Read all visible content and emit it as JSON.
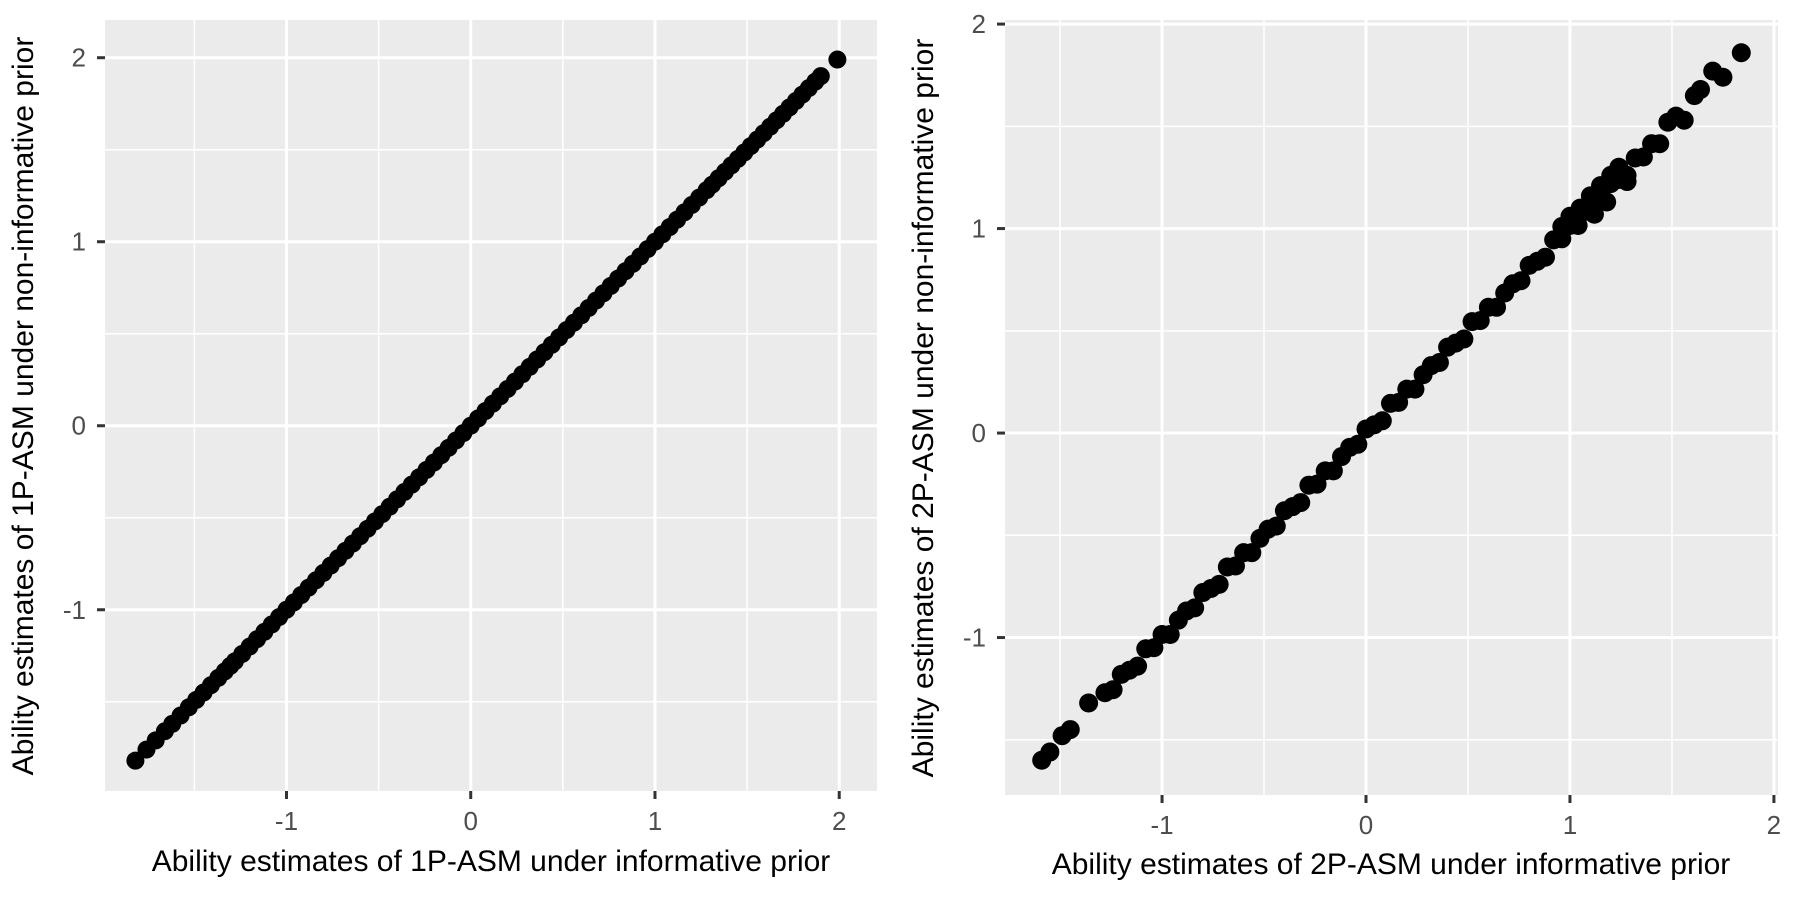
{
  "theme": {
    "figure_bg": "#FFFFFF",
    "panel_bg": "#EBEBEB",
    "grid_color": "#FFFFFF",
    "major_grid_width": 3,
    "minor_grid_width": 1.5,
    "tick_color": "#333333",
    "tick_label_color": "#4D4D4D",
    "axis_title_color": "#000000",
    "point_color": "#000000"
  },
  "chart_data": [
    {
      "id": "left",
      "type": "scatter",
      "title": "",
      "xlabel": "Ability estimates of 1P-ASM under informative prior",
      "ylabel": "Ability estimates of 1P-ASM under non-informative prior",
      "xlim": [
        -1.985,
        2.205
      ],
      "ylim": [
        -1.985,
        2.205
      ],
      "xticks": [
        -1,
        0,
        1,
        2
      ],
      "yticks": [
        -1,
        0,
        1,
        2
      ],
      "minor_breaks": [
        -1.5,
        -0.5,
        0.5,
        1.5
      ],
      "grid": true,
      "legend": false,
      "point_radius_px": 9,
      "points": [
        [
          -1.82,
          -1.82
        ],
        [
          -1.76,
          -1.76
        ],
        [
          -1.71,
          -1.71
        ],
        [
          -1.66,
          -1.66
        ],
        [
          -1.62,
          -1.62
        ],
        [
          -1.575,
          -1.575
        ],
        [
          -1.53,
          -1.53
        ],
        [
          -1.49,
          -1.49
        ],
        [
          -1.45,
          -1.45
        ],
        [
          -1.41,
          -1.41
        ],
        [
          -1.37,
          -1.37
        ],
        [
          -1.335,
          -1.335
        ],
        [
          -1.305,
          -1.305
        ],
        [
          -1.28,
          -1.28
        ],
        [
          -1.24,
          -1.24
        ],
        [
          -1.2,
          -1.2
        ],
        [
          -1.16,
          -1.16
        ],
        [
          -1.12,
          -1.12
        ],
        [
          -1.08,
          -1.08
        ],
        [
          -1.04,
          -1.04
        ],
        [
          -1.0,
          -1.0
        ],
        [
          -0.96,
          -0.96
        ],
        [
          -0.92,
          -0.92
        ],
        [
          -0.88,
          -0.88
        ],
        [
          -0.84,
          -0.84
        ],
        [
          -0.8,
          -0.8
        ],
        [
          -0.76,
          -0.76
        ],
        [
          -0.72,
          -0.72
        ],
        [
          -0.68,
          -0.68
        ],
        [
          -0.64,
          -0.64
        ],
        [
          -0.6,
          -0.6
        ],
        [
          -0.56,
          -0.56
        ],
        [
          -0.52,
          -0.52
        ],
        [
          -0.48,
          -0.48
        ],
        [
          -0.44,
          -0.44
        ],
        [
          -0.4,
          -0.4
        ],
        [
          -0.36,
          -0.36
        ],
        [
          -0.32,
          -0.32
        ],
        [
          -0.28,
          -0.28
        ],
        [
          -0.24,
          -0.24
        ],
        [
          -0.2,
          -0.2
        ],
        [
          -0.16,
          -0.16
        ],
        [
          -0.12,
          -0.12
        ],
        [
          -0.08,
          -0.08
        ],
        [
          -0.04,
          -0.04
        ],
        [
          0.0,
          0.0
        ],
        [
          0.04,
          0.04
        ],
        [
          0.08,
          0.08
        ],
        [
          0.12,
          0.12
        ],
        [
          0.16,
          0.16
        ],
        [
          0.2,
          0.2
        ],
        [
          0.24,
          0.24
        ],
        [
          0.28,
          0.28
        ],
        [
          0.32,
          0.32
        ],
        [
          0.36,
          0.36
        ],
        [
          0.4,
          0.4
        ],
        [
          0.44,
          0.44
        ],
        [
          0.48,
          0.48
        ],
        [
          0.52,
          0.52
        ],
        [
          0.56,
          0.56
        ],
        [
          0.6,
          0.6
        ],
        [
          0.64,
          0.64
        ],
        [
          0.68,
          0.68
        ],
        [
          0.72,
          0.72
        ],
        [
          0.76,
          0.76
        ],
        [
          0.8,
          0.8
        ],
        [
          0.84,
          0.84
        ],
        [
          0.88,
          0.88
        ],
        [
          0.92,
          0.92
        ],
        [
          0.96,
          0.96
        ],
        [
          1.0,
          1.0
        ],
        [
          1.04,
          1.04
        ],
        [
          1.08,
          1.08
        ],
        [
          1.12,
          1.12
        ],
        [
          1.16,
          1.16
        ],
        [
          1.2,
          1.2
        ],
        [
          1.24,
          1.24
        ],
        [
          1.28,
          1.28
        ],
        [
          1.31,
          1.31
        ],
        [
          1.345,
          1.345
        ],
        [
          1.38,
          1.38
        ],
        [
          1.415,
          1.415
        ],
        [
          1.45,
          1.45
        ],
        [
          1.485,
          1.485
        ],
        [
          1.52,
          1.52
        ],
        [
          1.555,
          1.555
        ],
        [
          1.59,
          1.59
        ],
        [
          1.625,
          1.625
        ],
        [
          1.66,
          1.66
        ],
        [
          1.695,
          1.695
        ],
        [
          1.73,
          1.73
        ],
        [
          1.765,
          1.765
        ],
        [
          1.8,
          1.8
        ],
        [
          1.835,
          1.835
        ],
        [
          1.87,
          1.87
        ],
        [
          1.9,
          1.9
        ],
        [
          1.99,
          1.99
        ]
      ]
    },
    {
      "id": "right",
      "type": "scatter",
      "title": "",
      "xlabel": "Ability estimates of 2P-ASM under informative prior",
      "ylabel": "Ability estimates of 2P-ASM under non-informative prior",
      "xlim": [
        -1.77,
        2.02
      ],
      "ylim": [
        -1.77,
        2.02
      ],
      "xticks": [
        -1,
        0,
        1,
        2
      ],
      "yticks": [
        -1,
        0,
        1,
        2
      ],
      "minor_breaks": [
        -1.5,
        -0.5,
        0.5,
        1.5
      ],
      "grid": true,
      "legend": false,
      "point_radius_px": 9.5,
      "points": [
        [
          -1.59,
          -1.6
        ],
        [
          -1.55,
          -1.56
        ],
        [
          -1.49,
          -1.48
        ],
        [
          -1.45,
          -1.45
        ],
        [
          -1.36,
          -1.32
        ],
        [
          -1.28,
          -1.27
        ],
        [
          -1.24,
          -1.255
        ],
        [
          -1.2,
          -1.18
        ],
        [
          -1.16,
          -1.16
        ],
        [
          -1.12,
          -1.14
        ],
        [
          -1.08,
          -1.055
        ],
        [
          -1.04,
          -1.05
        ],
        [
          -1.0,
          -0.985
        ],
        [
          -0.96,
          -0.985
        ],
        [
          -0.92,
          -0.915
        ],
        [
          -0.88,
          -0.87
        ],
        [
          -0.84,
          -0.855
        ],
        [
          -0.8,
          -0.78
        ],
        [
          -0.76,
          -0.76
        ],
        [
          -0.72,
          -0.74
        ],
        [
          -0.68,
          -0.655
        ],
        [
          -0.64,
          -0.65
        ],
        [
          -0.6,
          -0.585
        ],
        [
          -0.56,
          -0.585
        ],
        [
          -0.52,
          -0.515
        ],
        [
          -0.48,
          -0.47
        ],
        [
          -0.44,
          -0.455
        ],
        [
          -0.4,
          -0.38
        ],
        [
          -0.36,
          -0.36
        ],
        [
          -0.32,
          -0.34
        ],
        [
          -0.28,
          -0.255
        ],
        [
          -0.24,
          -0.25
        ],
        [
          -0.2,
          -0.185
        ],
        [
          -0.16,
          -0.185
        ],
        [
          -0.12,
          -0.115
        ],
        [
          -0.08,
          -0.07
        ],
        [
          -0.04,
          -0.055
        ],
        [
          0.0,
          0.02
        ],
        [
          0.04,
          0.04
        ],
        [
          0.08,
          0.06
        ],
        [
          0.12,
          0.145
        ],
        [
          0.16,
          0.15
        ],
        [
          0.2,
          0.215
        ],
        [
          0.24,
          0.215
        ],
        [
          0.28,
          0.285
        ],
        [
          0.32,
          0.33
        ],
        [
          0.36,
          0.345
        ],
        [
          0.4,
          0.42
        ],
        [
          0.44,
          0.44
        ],
        [
          0.48,
          0.46
        ],
        [
          0.52,
          0.545
        ],
        [
          0.56,
          0.55
        ],
        [
          0.6,
          0.615
        ],
        [
          0.64,
          0.615
        ],
        [
          0.68,
          0.685
        ],
        [
          0.72,
          0.73
        ],
        [
          0.76,
          0.745
        ],
        [
          0.8,
          0.82
        ],
        [
          0.84,
          0.84
        ],
        [
          0.88,
          0.86
        ],
        [
          0.92,
          0.945
        ],
        [
          0.96,
          0.95
        ],
        [
          1.0,
          1.015
        ],
        [
          1.04,
          1.015
        ],
        [
          1.08,
          1.085
        ],
        [
          1.12,
          1.13
        ],
        [
          1.16,
          1.145
        ],
        [
          1.2,
          1.22
        ],
        [
          1.24,
          1.24
        ],
        [
          1.28,
          1.26
        ],
        [
          1.32,
          1.345
        ],
        [
          1.36,
          1.35
        ],
        [
          1.4,
          1.415
        ],
        [
          1.44,
          1.415
        ],
        [
          0.96,
          1.01
        ],
        [
          1.0,
          1.06
        ],
        [
          1.05,
          1.1
        ],
        [
          1.1,
          1.16
        ],
        [
          1.15,
          1.21
        ],
        [
          1.2,
          1.26
        ],
        [
          1.12,
          1.07
        ],
        [
          1.18,
          1.13
        ],
        [
          1.24,
          1.3
        ],
        [
          1.28,
          1.23
        ],
        [
          1.48,
          1.52
        ],
        [
          1.52,
          1.55
        ],
        [
          1.56,
          1.53
        ],
        [
          1.61,
          1.65
        ],
        [
          1.64,
          1.68
        ],
        [
          1.7,
          1.77
        ],
        [
          1.75,
          1.74
        ],
        [
          1.84,
          1.86
        ]
      ]
    }
  ]
}
